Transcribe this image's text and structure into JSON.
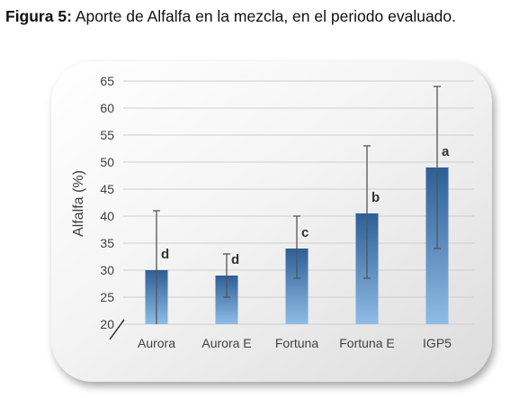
{
  "caption": {
    "label": "Figura 5:",
    "text": "Aporte de Alfalfa en la mezcla, en el periodo evaluado."
  },
  "chart_data": {
    "type": "bar",
    "title": "",
    "xlabel": "",
    "ylabel": "Alfalfa (%)",
    "ylim": [
      20,
      65
    ],
    "yticks": [
      20,
      25,
      30,
      35,
      40,
      45,
      50,
      55,
      60,
      65
    ],
    "grid": true,
    "axis_break": true,
    "categories": [
      "Aurora",
      "Aurora E",
      "Fortuna",
      "Fortuna E",
      "IGP5"
    ],
    "values": [
      30,
      29,
      34,
      40.5,
      49
    ],
    "error_low": [
      20,
      25,
      28.5,
      28.5,
      34
    ],
    "error_high": [
      41,
      33,
      40,
      53,
      64
    ],
    "significance": [
      "d",
      "d",
      "c",
      "b",
      "a"
    ],
    "bar_color_top": "#2d5f96",
    "bar_color_bottom": "#8fbce6"
  }
}
